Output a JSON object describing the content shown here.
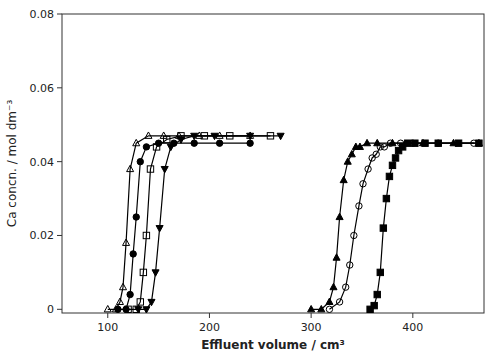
{
  "chart_data": {
    "type": "line",
    "xlabel": "Effluent volume / cm³",
    "ylabel": "Ca concn. / mol dm⁻³",
    "xlim": [
      55,
      470
    ],
    "ylim": [
      -0.001,
      0.08
    ],
    "xticks": [
      100,
      200,
      300,
      400
    ],
    "yticks": [
      0,
      0.02,
      0.04,
      0.06,
      0.08
    ],
    "grid": false,
    "series": [
      {
        "color": "black",
        "marker": "triangle-up-open",
        "x": [
          100,
          108,
          112,
          115,
          118,
          122,
          128,
          140,
          155,
          170,
          190,
          210,
          240
        ],
        "values": [
          0.0,
          0.0,
          0.002,
          0.006,
          0.018,
          0.038,
          0.045,
          0.047,
          0.047,
          0.047,
          0.047,
          0.047,
          0.047
        ]
      },
      {
        "color": "black",
        "marker": "circle",
        "x": [
          110,
          118,
          122,
          125,
          128,
          132,
          138,
          150,
          165,
          185,
          210,
          240
        ],
        "values": [
          0.0,
          0.0,
          0.004,
          0.015,
          0.025,
          0.04,
          0.044,
          0.045,
          0.045,
          0.045,
          0.045,
          0.045
        ]
      },
      {
        "color": "black",
        "marker": "square-open",
        "x": [
          120,
          128,
          132,
          135,
          138,
          142,
          148,
          158,
          172,
          195,
          220,
          260
        ],
        "values": [
          0.0,
          0.0,
          0.002,
          0.01,
          0.02,
          0.038,
          0.044,
          0.046,
          0.047,
          0.047,
          0.047,
          0.047
        ]
      },
      {
        "color": "black",
        "marker": "triangle-down",
        "x": [
          130,
          138,
          143,
          147,
          151,
          156,
          162,
          172,
          185,
          205,
          240,
          270
        ],
        "values": [
          0.0,
          0.0,
          0.002,
          0.01,
          0.022,
          0.038,
          0.044,
          0.046,
          0.047,
          0.047,
          0.047,
          0.047
        ]
      },
      {
        "color": "black",
        "marker": "triangle-up",
        "x": [
          300,
          310,
          318,
          322,
          325,
          328,
          332,
          336,
          340,
          344,
          348,
          355,
          365,
          380,
          410,
          440,
          465
        ],
        "values": [
          0.0,
          0.0,
          0.002,
          0.006,
          0.014,
          0.025,
          0.035,
          0.04,
          0.042,
          0.044,
          0.044,
          0.045,
          0.045,
          0.045,
          0.045,
          0.045,
          0.045
        ]
      },
      {
        "color": "black",
        "marker": "circle-open",
        "x": [
          318,
          328,
          334,
          338,
          342,
          347,
          351,
          356,
          360,
          364,
          368,
          372,
          378,
          388,
          400,
          425,
          460
        ],
        "values": [
          0.0,
          0.002,
          0.006,
          0.012,
          0.02,
          0.028,
          0.034,
          0.038,
          0.041,
          0.042,
          0.044,
          0.044,
          0.045,
          0.045,
          0.045,
          0.045,
          0.045
        ]
      },
      {
        "color": "black",
        "marker": "square",
        "x": [
          358,
          362,
          365,
          368,
          371,
          374,
          377,
          380,
          383,
          386,
          390,
          395,
          402,
          412,
          425,
          445,
          465
        ],
        "values": [
          0.0,
          0.001,
          0.004,
          0.01,
          0.022,
          0.03,
          0.036,
          0.039,
          0.041,
          0.043,
          0.044,
          0.045,
          0.045,
          0.045,
          0.045,
          0.045,
          0.045
        ]
      }
    ]
  }
}
